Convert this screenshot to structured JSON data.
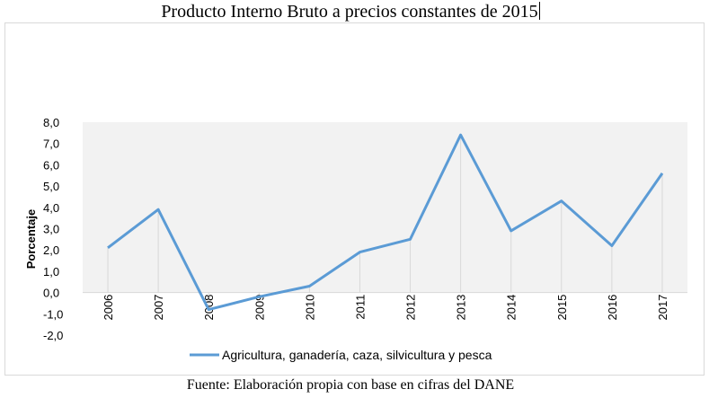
{
  "title": "Producto Interno Bruto a precios constantes de 2015",
  "source": "Fuente: Elaboración propia con base en cifras del DANE",
  "colors": {
    "series": "#5b9bd5",
    "plot_bg": "#f2f2f2",
    "gridline": "#d9d9d9"
  },
  "chart_data": {
    "type": "line",
    "title": "Producto Interno Bruto a precios constantes de 2015",
    "xlabel": "",
    "ylabel": "Porcentaje",
    "ylim": [
      -2.0,
      8.0
    ],
    "ytick_step": 1.0,
    "yticks": [
      "-2,0",
      "-1,0",
      "0,0",
      "1,0",
      "2,0",
      "3,0",
      "4,0",
      "5,0",
      "6,0",
      "7,0",
      "8,0"
    ],
    "categories": [
      "2006",
      "2007",
      "2008",
      "2009",
      "2010",
      "2011",
      "2012",
      "2013",
      "2014",
      "2015",
      "2016",
      "2017"
    ],
    "series": [
      {
        "name": "Agricultura, ganadería, caza, silvicultura y pesca",
        "values": [
          2.1,
          3.9,
          -0.8,
          -0.2,
          0.3,
          1.9,
          2.5,
          7.4,
          2.9,
          4.3,
          2.2,
          5.6
        ]
      }
    ],
    "grid": "vertical drop lines",
    "legend_position": "bottom"
  }
}
